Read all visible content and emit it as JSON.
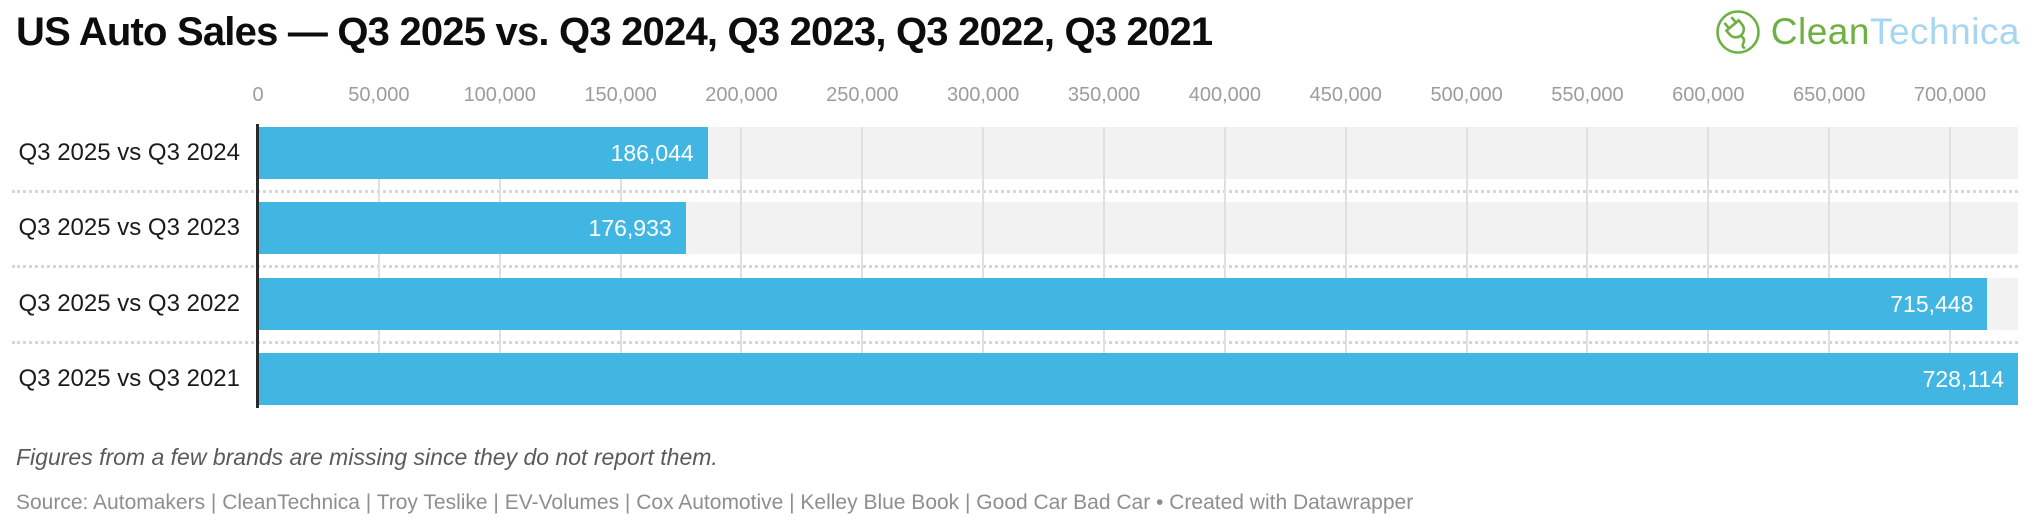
{
  "header": {
    "title": "US Auto Sales — Q3 2025 vs. Q3 2024, Q3 2023, Q3 2022, Q3 2021"
  },
  "logo": {
    "icon": "plug-in-circle-icon",
    "text_green": "Clean",
    "text_blue": "Technica",
    "green_color": "#6fb043",
    "blue_color": "#a6d6f2"
  },
  "chart_data": {
    "type": "bar",
    "orientation": "horizontal",
    "title": "US Auto Sales — Q3 2025 vs. Q3 2024, Q3 2023, Q3 2022, Q3 2021",
    "categories": [
      "Q3 2025 vs Q3 2024",
      "Q3 2025 vs Q3 2023",
      "Q3 2025 vs Q3 2022",
      "Q3 2025 vs Q3 2021"
    ],
    "values": [
      186044,
      176933,
      715448,
      728114
    ],
    "value_labels": [
      "186,044",
      "176,933",
      "715,448",
      "728,114"
    ],
    "axis_ticks": [
      0,
      50000,
      100000,
      150000,
      200000,
      250000,
      300000,
      350000,
      400000,
      450000,
      500000,
      550000,
      600000,
      650000,
      700000
    ],
    "axis_tick_labels": [
      "0",
      "50,000",
      "100,000",
      "150,000",
      "200,000",
      "250,000",
      "300,000",
      "350,000",
      "400,000",
      "450,000",
      "500,000",
      "550,000",
      "600,000",
      "650,000",
      "700,000"
    ],
    "axis_max": 728114,
    "xlabel": "",
    "ylabel": "",
    "grid": true,
    "legend_position": "none",
    "bar_color": "#41b6e2",
    "band_color": "#f2f2f2"
  },
  "footer": {
    "note": "Figures from a few brands are missing since they do not report them.",
    "source": "Source: Automakers | CleanTechnica | Troy Teslike | EV-Volumes | Cox Automotive | Kelley Blue Book | Good Car Bad Car • Created with Datawrapper"
  }
}
